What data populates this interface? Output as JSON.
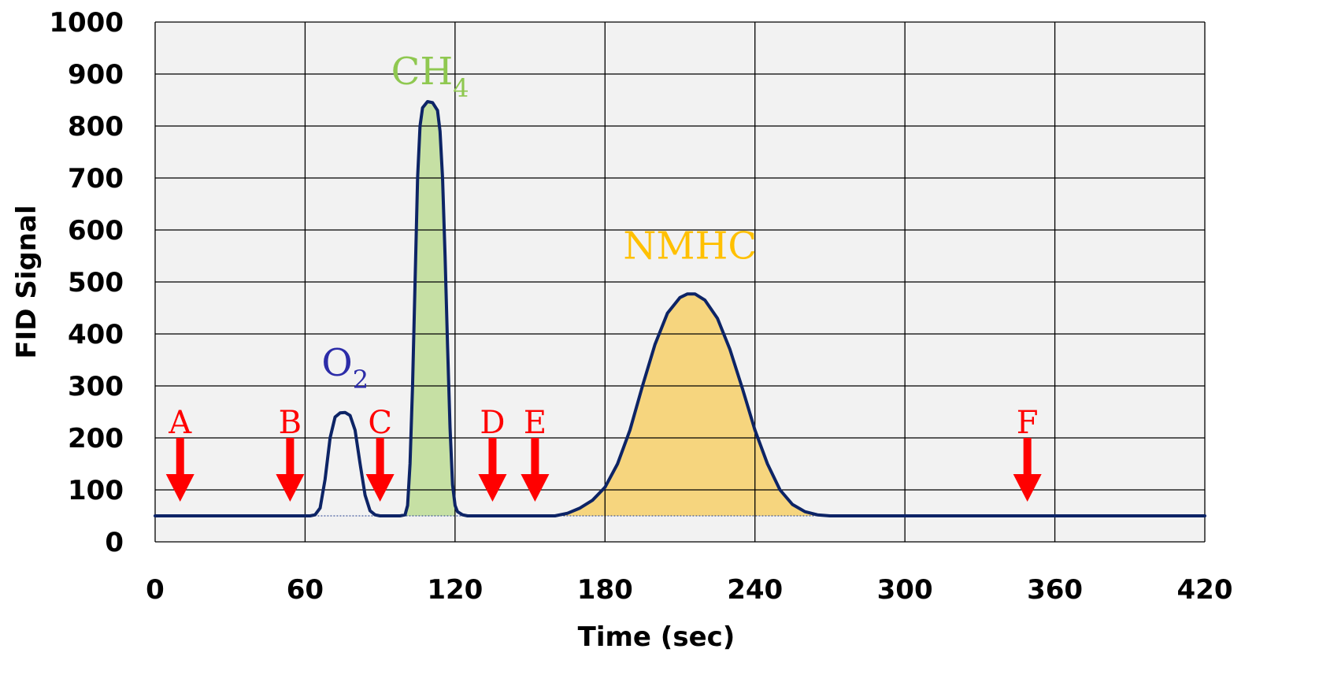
{
  "chart_data": {
    "type": "line",
    "xlabel": "Time (sec)",
    "ylabel": "FID Signal",
    "xlim": [
      0,
      420
    ],
    "ylim": [
      0,
      1000
    ],
    "xticks": [
      "0",
      "60",
      "120",
      "180",
      "240",
      "300",
      "360",
      "420"
    ],
    "yticks": [
      "0",
      "100",
      "200",
      "300",
      "400",
      "500",
      "600",
      "700",
      "800",
      "900",
      "1000"
    ],
    "grid": true,
    "baseline": 50,
    "series": [
      {
        "color": "#0d2466",
        "points": [
          [
            0,
            50
          ],
          [
            62,
            50
          ],
          [
            64,
            52
          ],
          [
            66,
            65
          ],
          [
            68,
            120
          ],
          [
            70,
            200
          ],
          [
            72,
            240
          ],
          [
            74,
            248
          ],
          [
            76,
            249
          ],
          [
            78,
            243
          ],
          [
            80,
            215
          ],
          [
            82,
            150
          ],
          [
            84,
            90
          ],
          [
            86,
            60
          ],
          [
            88,
            52
          ],
          [
            90,
            50
          ],
          [
            98,
            50
          ],
          [
            100,
            52
          ],
          [
            101,
            70
          ],
          [
            102,
            150
          ],
          [
            103,
            300
          ],
          [
            104,
            500
          ],
          [
            105,
            700
          ],
          [
            106,
            800
          ],
          [
            107,
            835
          ],
          [
            109,
            847
          ],
          [
            111,
            845
          ],
          [
            113,
            830
          ],
          [
            114,
            790
          ],
          [
            115,
            700
          ],
          [
            116,
            550
          ],
          [
            117,
            380
          ],
          [
            118,
            220
          ],
          [
            119,
            110
          ],
          [
            120,
            70
          ],
          [
            121,
            58
          ],
          [
            123,
            52
          ],
          [
            125,
            50
          ],
          [
            160,
            50
          ],
          [
            165,
            55
          ],
          [
            170,
            65
          ],
          [
            175,
            80
          ],
          [
            180,
            105
          ],
          [
            185,
            150
          ],
          [
            190,
            215
          ],
          [
            195,
            300
          ],
          [
            200,
            380
          ],
          [
            205,
            440
          ],
          [
            210,
            470
          ],
          [
            213,
            477
          ],
          [
            216,
            477
          ],
          [
            220,
            465
          ],
          [
            225,
            430
          ],
          [
            230,
            370
          ],
          [
            235,
            295
          ],
          [
            240,
            215
          ],
          [
            245,
            150
          ],
          [
            250,
            100
          ],
          [
            255,
            72
          ],
          [
            260,
            58
          ],
          [
            265,
            52
          ],
          [
            270,
            50
          ],
          [
            420,
            50
          ]
        ]
      }
    ],
    "peaks": [
      {
        "label": "O",
        "subscript": "2",
        "color": "#2c2ca8",
        "range": [
          62,
          90
        ],
        "fill": "none",
        "label_x": 76,
        "label_y": 320
      },
      {
        "label": "CH",
        "subscript": "4",
        "color": "#8fc850",
        "range": [
          100,
          120
        ],
        "fill": "#c6e0a4",
        "label_x": 110,
        "label_y": 880
      },
      {
        "label": "NMHC",
        "subscript": "",
        "color": "#ffc000",
        "range": [
          160,
          270
        ],
        "fill": "#f6d57e",
        "label_x": 214,
        "label_y": 545
      }
    ],
    "markers": [
      {
        "label": "A",
        "x": 10
      },
      {
        "label": "B",
        "x": 54
      },
      {
        "label": "C",
        "x": 90
      },
      {
        "label": "D",
        "x": 135
      },
      {
        "label": "E",
        "x": 152
      },
      {
        "label": "F",
        "x": 349
      }
    ],
    "marker_color": "#ff0000",
    "colors": {
      "plot_background": "#f2f2f2",
      "grid": "#000000"
    }
  }
}
